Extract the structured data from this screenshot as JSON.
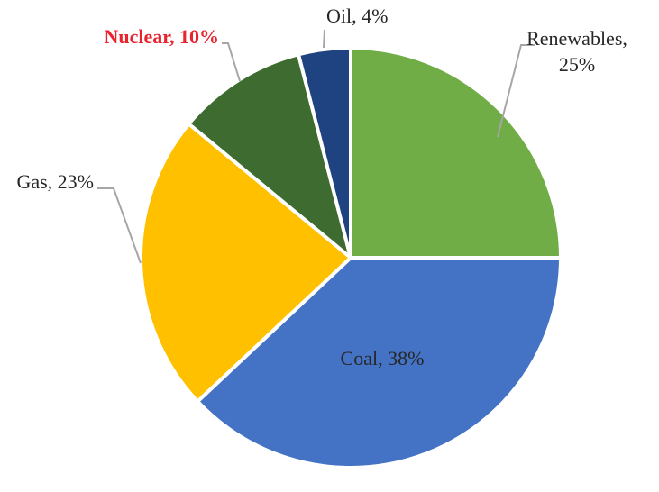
{
  "chart_data": {
    "type": "pie",
    "title": "",
    "slices": [
      {
        "name": "Renewables",
        "value": 25,
        "label_lines": [
          "Renewables,",
          "25%"
        ],
        "color": "#70ad47",
        "emphasis": false
      },
      {
        "name": "Coal",
        "value": 38,
        "label_lines": [
          "Coal, 38%"
        ],
        "color": "#4472c4",
        "emphasis": false
      },
      {
        "name": "Gas",
        "value": 23,
        "label_lines": [
          "Gas, 23%"
        ],
        "color": "#ffc000",
        "emphasis": false
      },
      {
        "name": "Nuclear",
        "value": 10,
        "label_lines": [
          "Nuclear, 10%"
        ],
        "color": "#3d6b30",
        "emphasis": true
      },
      {
        "name": "Oil",
        "value": 4,
        "label_lines": [
          "Oil, 4%"
        ],
        "color": "#1f4380",
        "emphasis": false
      }
    ],
    "start_angle": "12 o'clock, clockwise",
    "legend": "none",
    "label_color": "#262626",
    "emphasis_color": "#e8242f",
    "leader_line_color": "#a6a6a6"
  }
}
